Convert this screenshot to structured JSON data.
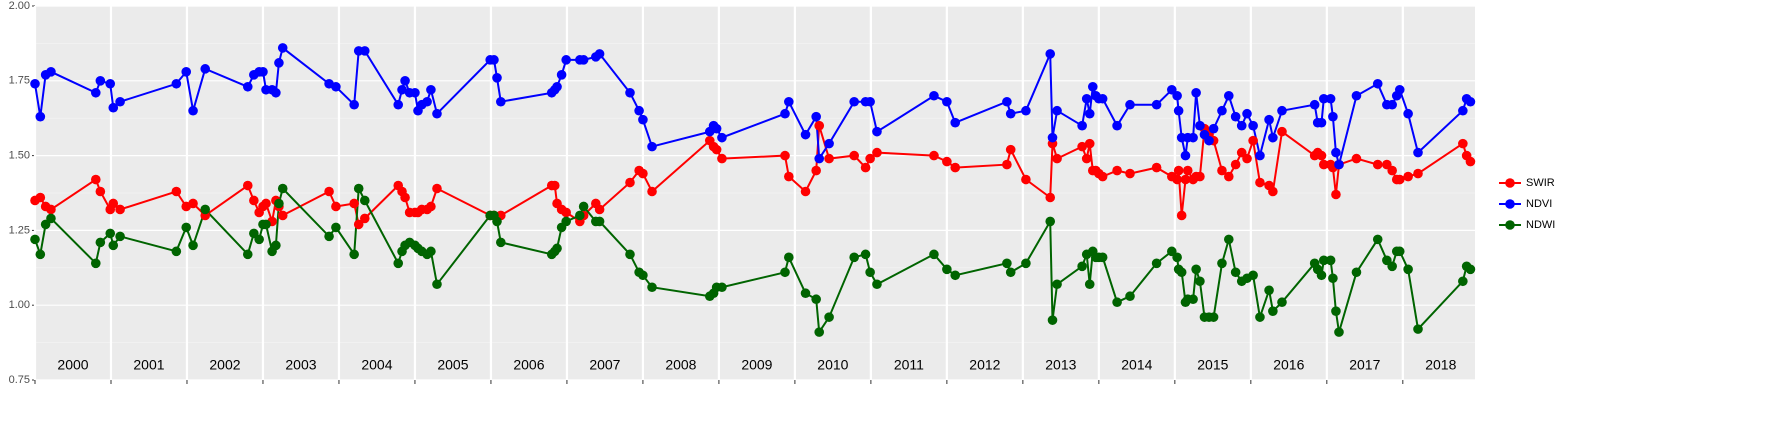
{
  "chart_data": {
    "type": "line",
    "x": [
      2000.0,
      2000.07,
      2000.14,
      2000.21,
      2000.8,
      2000.86,
      2000.99,
      2001.03,
      2001.12,
      2001.86,
      2001.99,
      2002.08,
      2002.24,
      2002.8,
      2002.88,
      2002.95,
      2003.0,
      2003.04,
      2003.12,
      2003.17,
      2003.21,
      2003.26,
      2003.87,
      2003.96,
      2004.2,
      2004.26,
      2004.34,
      2004.78,
      2004.83,
      2004.87,
      2004.93,
      2005.0,
      2005.04,
      2005.09,
      2005.16,
      2005.21,
      2005.29,
      2005.99,
      2006.04,
      2006.08,
      2006.13,
      2006.8,
      2006.84,
      2006.87,
      2006.93,
      2006.99,
      2007.17,
      2007.22,
      2007.38,
      2007.43,
      2007.83,
      2007.95,
      2008.0,
      2008.12,
      2008.88,
      2008.93,
      2008.97,
      2009.04,
      2009.87,
      2009.92,
      2010.14,
      2010.28,
      2010.32,
      2010.45,
      2010.78,
      2010.93,
      2010.99,
      2011.08,
      2011.83,
      2012.0,
      2012.11,
      2012.79,
      2012.84,
      2013.04,
      2013.36,
      2013.39,
      2013.45,
      2013.78,
      2013.84,
      2013.88,
      2013.92,
      2013.96,
      2014.0,
      2014.05,
      2014.24,
      2014.41,
      2014.76,
      2014.96,
      2015.03,
      2015.05,
      2015.09,
      2015.14,
      2015.17,
      2015.24,
      2015.28,
      2015.33,
      2015.39,
      2015.45,
      2015.51,
      2015.62,
      2015.71,
      2015.8,
      2015.88,
      2015.95,
      2016.03,
      2016.12,
      2016.24,
      2016.29,
      2016.41,
      2016.84,
      2016.88,
      2016.93,
      2016.96,
      2017.05,
      2017.08,
      2017.12,
      2017.16,
      2017.39,
      2017.67,
      2017.79,
      2017.86,
      2017.92,
      2017.96,
      2018.07,
      2018.2,
      2018.79,
      2018.84,
      2018.89
    ],
    "series": [
      {
        "name": "SWIR",
        "color": "#ff0000",
        "values": [
          1.35,
          1.36,
          1.33,
          1.32,
          1.42,
          1.38,
          1.32,
          1.34,
          1.32,
          1.38,
          1.33,
          1.34,
          1.3,
          1.4,
          1.35,
          1.31,
          1.33,
          1.34,
          1.28,
          1.35,
          1.33,
          1.3,
          1.38,
          1.33,
          1.34,
          1.27,
          1.29,
          1.4,
          1.38,
          1.36,
          1.31,
          1.31,
          1.31,
          1.32,
          1.32,
          1.33,
          1.39,
          1.3,
          1.3,
          1.29,
          1.3,
          1.4,
          1.4,
          1.34,
          1.32,
          1.31,
          1.28,
          1.3,
          1.34,
          1.32,
          1.41,
          1.45,
          1.44,
          1.38,
          1.55,
          1.53,
          1.52,
          1.49,
          1.5,
          1.43,
          1.38,
          1.45,
          1.6,
          1.49,
          1.5,
          1.46,
          1.49,
          1.51,
          1.5,
          1.48,
          1.46,
          1.47,
          1.52,
          1.42,
          1.36,
          1.54,
          1.49,
          1.53,
          1.49,
          1.54,
          1.45,
          1.45,
          1.44,
          1.43,
          1.45,
          1.44,
          1.46,
          1.43,
          1.42,
          1.45,
          1.3,
          1.42,
          1.45,
          1.42,
          1.43,
          1.43,
          1.59,
          1.57,
          1.55,
          1.45,
          1.43,
          1.47,
          1.51,
          1.49,
          1.55,
          1.41,
          1.4,
          1.38,
          1.58,
          1.5,
          1.51,
          1.5,
          1.47,
          1.47,
          1.46,
          1.37,
          1.47,
          1.49,
          1.47,
          1.47,
          1.45,
          1.42,
          1.42,
          1.43,
          1.44,
          1.54,
          1.5,
          1.48
        ]
      },
      {
        "name": "NDVI",
        "color": "#0000ff",
        "values": [
          1.74,
          1.63,
          1.77,
          1.78,
          1.71,
          1.75,
          1.74,
          1.66,
          1.68,
          1.74,
          1.78,
          1.65,
          1.79,
          1.73,
          1.77,
          1.78,
          1.78,
          1.72,
          1.72,
          1.71,
          1.81,
          1.86,
          1.74,
          1.73,
          1.67,
          1.85,
          1.85,
          1.67,
          1.72,
          1.75,
          1.71,
          1.71,
          1.65,
          1.67,
          1.68,
          1.72,
          1.64,
          1.82,
          1.82,
          1.76,
          1.68,
          1.71,
          1.72,
          1.73,
          1.77,
          1.82,
          1.82,
          1.82,
          1.83,
          1.84,
          1.71,
          1.65,
          1.62,
          1.53,
          1.58,
          1.6,
          1.59,
          1.56,
          1.64,
          1.68,
          1.57,
          1.63,
          1.49,
          1.54,
          1.68,
          1.68,
          1.68,
          1.58,
          1.7,
          1.68,
          1.61,
          1.68,
          1.64,
          1.65,
          1.84,
          1.56,
          1.65,
          1.6,
          1.69,
          1.64,
          1.73,
          1.7,
          1.69,
          1.69,
          1.6,
          1.67,
          1.67,
          1.72,
          1.7,
          1.65,
          1.56,
          1.5,
          1.56,
          1.56,
          1.71,
          1.6,
          1.57,
          1.55,
          1.59,
          1.65,
          1.7,
          1.63,
          1.6,
          1.64,
          1.6,
          1.5,
          1.62,
          1.56,
          1.65,
          1.67,
          1.61,
          1.61,
          1.69,
          1.69,
          1.63,
          1.51,
          1.47,
          1.7,
          1.74,
          1.67,
          1.67,
          1.7,
          1.72,
          1.64,
          1.51,
          1.65,
          1.69,
          1.68
        ]
      },
      {
        "name": "NDWI",
        "color": "#006400",
        "values": [
          1.22,
          1.17,
          1.27,
          1.29,
          1.14,
          1.21,
          1.24,
          1.2,
          1.23,
          1.18,
          1.26,
          1.2,
          1.32,
          1.17,
          1.24,
          1.22,
          1.27,
          1.27,
          1.18,
          1.2,
          1.34,
          1.39,
          1.23,
          1.26,
          1.17,
          1.39,
          1.35,
          1.14,
          1.18,
          1.2,
          1.21,
          1.2,
          1.19,
          1.18,
          1.17,
          1.18,
          1.07,
          1.3,
          1.3,
          1.28,
          1.21,
          1.17,
          1.18,
          1.19,
          1.26,
          1.28,
          1.3,
          1.33,
          1.28,
          1.28,
          1.17,
          1.11,
          1.1,
          1.06,
          1.03,
          1.04,
          1.06,
          1.06,
          1.11,
          1.16,
          1.04,
          1.02,
          0.91,
          0.96,
          1.16,
          1.17,
          1.11,
          1.07,
          1.17,
          1.12,
          1.1,
          1.14,
          1.11,
          1.14,
          1.28,
          0.95,
          1.07,
          1.13,
          1.17,
          1.07,
          1.18,
          1.16,
          1.16,
          1.16,
          1.01,
          1.03,
          1.14,
          1.18,
          1.16,
          1.12,
          1.11,
          1.01,
          1.02,
          1.02,
          1.12,
          1.08,
          0.96,
          0.96,
          0.96,
          1.14,
          1.22,
          1.11,
          1.08,
          1.09,
          1.1,
          0.96,
          1.05,
          0.98,
          1.01,
          1.14,
          1.12,
          1.1,
          1.15,
          1.15,
          1.09,
          0.98,
          0.91,
          1.11,
          1.22,
          1.15,
          1.13,
          1.18,
          1.18,
          1.12,
          0.92,
          1.08,
          1.13,
          1.12
        ]
      }
    ],
    "year_labels": [
      "2000",
      "2001",
      "2002",
      "2003",
      "2004",
      "2005",
      "2006",
      "2007",
      "2008",
      "2009",
      "2010",
      "2011",
      "2012",
      "2013",
      "2014",
      "2015",
      "2016",
      "2017",
      "2018"
    ],
    "xlim": [
      2000,
      2018.95
    ],
    "xticks": [
      2000,
      2001,
      2002,
      2003,
      2004,
      2005,
      2006,
      2007,
      2008,
      2009,
      2010,
      2011,
      2012,
      2013,
      2014,
      2015,
      2016,
      2017,
      2018
    ],
    "ylim": [
      0.75,
      2.0
    ],
    "yticks": [
      0.75,
      {
        "value": 1.0,
        "label": "1.00"
      },
      1.25,
      {
        "value": 1.5,
        "label": "1.50"
      },
      1.75,
      {
        "value": 2.0,
        "label": "2.00"
      }
    ],
    "grid": true,
    "legend": "right"
  }
}
